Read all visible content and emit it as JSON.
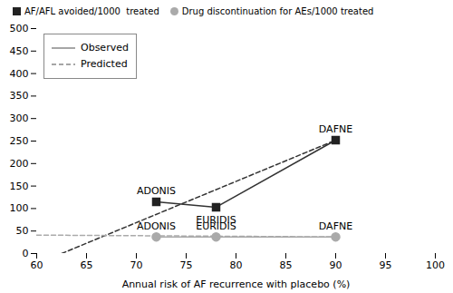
{
  "chart_data": {
    "type": "line",
    "xlabel": "Annual risk of AF recurrence with placebo (%)",
    "xlim": [
      60,
      100
    ],
    "ylim": [
      0,
      500
    ],
    "xticks": [
      60,
      65,
      70,
      75,
      80,
      85,
      90,
      95,
      100
    ],
    "yticks": [
      0,
      50,
      100,
      150,
      200,
      250,
      300,
      350,
      400,
      450,
      500
    ],
    "legend": "upper left",
    "series": [
      {
        "type": "line",
        "line_style": "solid",
        "color": "#333333",
        "x": [
          72,
          78,
          90
        ],
        "values": [
          115,
          103,
          252
        ]
      },
      {
        "type": "line",
        "line_style": "solid",
        "color": "#aaaaaa",
        "x": [
          72,
          78,
          90
        ],
        "values": [
          37,
          37,
          37
        ]
      },
      {
        "type": "line",
        "line_style": "dashed",
        "color": "#333333",
        "x": [
          62.5,
          90
        ],
        "values": [
          0,
          252
        ]
      },
      {
        "type": "line",
        "line_style": "dashed",
        "color": "#aaaaaa",
        "x": [
          60,
          90
        ],
        "values": [
          41,
          37
        ]
      },
      {
        "name": "AF/AFL avoided/1000  treated",
        "type": "scatter",
        "marker": "square",
        "color": "#222222",
        "x": [
          72,
          78,
          90
        ],
        "values": [
          115,
          103,
          252
        ],
        "labels": [
          "ADONIS",
          "EURIDIS",
          "DAFNE"
        ]
      },
      {
        "name": "Drug discontinuation for AEs/1000 treated",
        "type": "scatter",
        "marker": "circle",
        "color": "#aaaaaa",
        "x": [
          72,
          78,
          90
        ],
        "values": [
          37,
          37,
          37
        ],
        "labels": [
          "ADONIS",
          "EURIDIS",
          "DAFNE"
        ]
      }
    ],
    "line_legend": [
      {
        "label": "Observed",
        "line_style": "solid",
        "color": "#888888"
      },
      {
        "label": "Predicted",
        "line_style": "dashed",
        "color": "#888888"
      }
    ]
  }
}
